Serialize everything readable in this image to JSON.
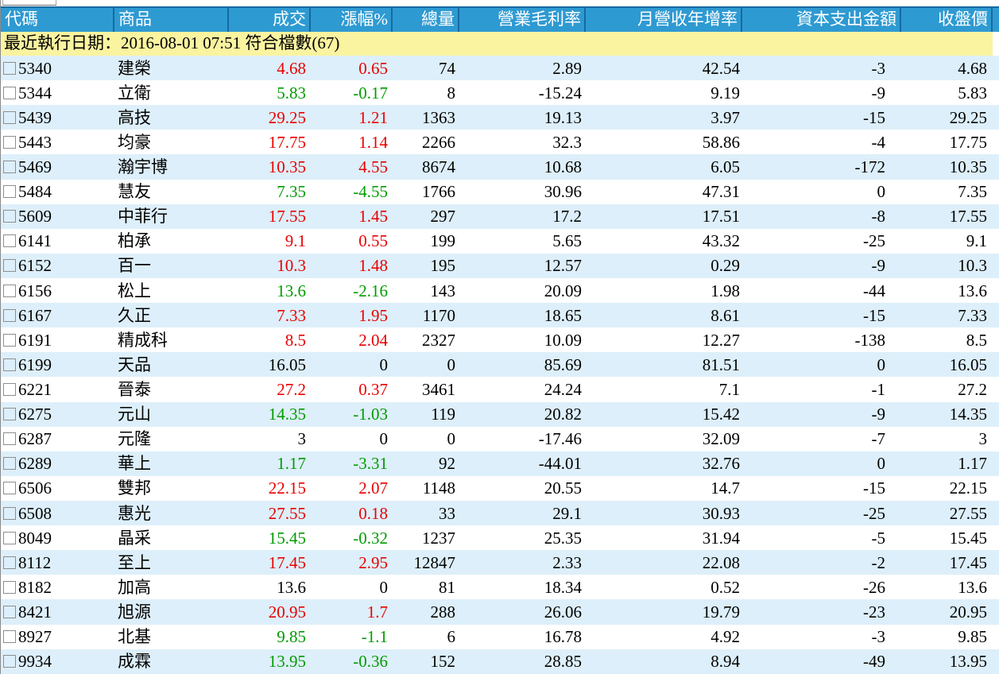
{
  "window": {
    "title": "stock-screener-results"
  },
  "colors": {
    "header_bg": "#2e9ad2",
    "header_border": "#166aa0",
    "status_bg": "#faf3a0",
    "row_alt_bg": "#ddeffa",
    "up": "#e80000",
    "down": "#009b00",
    "flat": "#000000"
  },
  "columns": [
    {
      "key": "code",
      "label": "代碼"
    },
    {
      "key": "name",
      "label": "商品"
    },
    {
      "key": "price",
      "label": "成交"
    },
    {
      "key": "change",
      "label": "漲幅%"
    },
    {
      "key": "volume",
      "label": "總量"
    },
    {
      "key": "gross_margin",
      "label": "營業毛利率"
    },
    {
      "key": "revenue_yoy",
      "label": "月營收年增率"
    },
    {
      "key": "capex",
      "label": "資本支出金額"
    },
    {
      "key": "close",
      "label": "收盤價"
    }
  ],
  "status": {
    "text": "最近執行日期：2016-08-01 07:51 符合檔數(67)",
    "last_run": "2016-08-01 07:51",
    "match_count": "67"
  },
  "rows": [
    {
      "code": "5340",
      "name": "建榮",
      "price": "4.68",
      "change": "0.65",
      "volume": "74",
      "gross_margin": "2.89",
      "revenue_yoy": "42.54",
      "capex": "-3",
      "close": "4.68",
      "trend": "up"
    },
    {
      "code": "5344",
      "name": "立衛",
      "price": "5.83",
      "change": "-0.17",
      "volume": "8",
      "gross_margin": "-15.24",
      "revenue_yoy": "9.19",
      "capex": "-9",
      "close": "5.83",
      "trend": "down"
    },
    {
      "code": "5439",
      "name": "高技",
      "price": "29.25",
      "change": "1.21",
      "volume": "1363",
      "gross_margin": "19.13",
      "revenue_yoy": "3.97",
      "capex": "-15",
      "close": "29.25",
      "trend": "up"
    },
    {
      "code": "5443",
      "name": "均豪",
      "price": "17.75",
      "change": "1.14",
      "volume": "2266",
      "gross_margin": "32.3",
      "revenue_yoy": "58.86",
      "capex": "-4",
      "close": "17.75",
      "trend": "up"
    },
    {
      "code": "5469",
      "name": "瀚宇博",
      "price": "10.35",
      "change": "4.55",
      "volume": "8674",
      "gross_margin": "10.68",
      "revenue_yoy": "6.05",
      "capex": "-172",
      "close": "10.35",
      "trend": "up"
    },
    {
      "code": "5484",
      "name": "慧友",
      "price": "7.35",
      "change": "-4.55",
      "volume": "1766",
      "gross_margin": "30.96",
      "revenue_yoy": "47.31",
      "capex": "0",
      "close": "7.35",
      "trend": "down"
    },
    {
      "code": "5609",
      "name": "中菲行",
      "price": "17.55",
      "change": "1.45",
      "volume": "297",
      "gross_margin": "17.2",
      "revenue_yoy": "17.51",
      "capex": "-8",
      "close": "17.55",
      "trend": "up"
    },
    {
      "code": "6141",
      "name": "柏承",
      "price": "9.1",
      "change": "0.55",
      "volume": "199",
      "gross_margin": "5.65",
      "revenue_yoy": "43.32",
      "capex": "-25",
      "close": "9.1",
      "trend": "up"
    },
    {
      "code": "6152",
      "name": "百一",
      "price": "10.3",
      "change": "1.48",
      "volume": "195",
      "gross_margin": "12.57",
      "revenue_yoy": "0.29",
      "capex": "-9",
      "close": "10.3",
      "trend": "up"
    },
    {
      "code": "6156",
      "name": "松上",
      "price": "13.6",
      "change": "-2.16",
      "volume": "143",
      "gross_margin": "20.09",
      "revenue_yoy": "1.98",
      "capex": "-44",
      "close": "13.6",
      "trend": "down"
    },
    {
      "code": "6167",
      "name": "久正",
      "price": "7.33",
      "change": "1.95",
      "volume": "1170",
      "gross_margin": "18.65",
      "revenue_yoy": "8.61",
      "capex": "-15",
      "close": "7.33",
      "trend": "up"
    },
    {
      "code": "6191",
      "name": "精成科",
      "price": "8.5",
      "change": "2.04",
      "volume": "2327",
      "gross_margin": "10.09",
      "revenue_yoy": "12.27",
      "capex": "-138",
      "close": "8.5",
      "trend": "up"
    },
    {
      "code": "6199",
      "name": "天品",
      "price": "16.05",
      "change": "0",
      "volume": "0",
      "gross_margin": "85.69",
      "revenue_yoy": "81.51",
      "capex": "0",
      "close": "16.05",
      "trend": "flat"
    },
    {
      "code": "6221",
      "name": "晉泰",
      "price": "27.2",
      "change": "0.37",
      "volume": "3461",
      "gross_margin": "24.24",
      "revenue_yoy": "7.1",
      "capex": "-1",
      "close": "27.2",
      "trend": "up"
    },
    {
      "code": "6275",
      "name": "元山",
      "price": "14.35",
      "change": "-1.03",
      "volume": "119",
      "gross_margin": "20.82",
      "revenue_yoy": "15.42",
      "capex": "-9",
      "close": "14.35",
      "trend": "down"
    },
    {
      "code": "6287",
      "name": "元隆",
      "price": "3",
      "change": "0",
      "volume": "0",
      "gross_margin": "-17.46",
      "revenue_yoy": "32.09",
      "capex": "-7",
      "close": "3",
      "trend": "flat"
    },
    {
      "code": "6289",
      "name": "華上",
      "price": "1.17",
      "change": "-3.31",
      "volume": "92",
      "gross_margin": "-44.01",
      "revenue_yoy": "32.76",
      "capex": "0",
      "close": "1.17",
      "trend": "down"
    },
    {
      "code": "6506",
      "name": "雙邦",
      "price": "22.15",
      "change": "2.07",
      "volume": "1148",
      "gross_margin": "20.55",
      "revenue_yoy": "14.7",
      "capex": "-15",
      "close": "22.15",
      "trend": "up"
    },
    {
      "code": "6508",
      "name": "惠光",
      "price": "27.55",
      "change": "0.18",
      "volume": "33",
      "gross_margin": "29.1",
      "revenue_yoy": "30.93",
      "capex": "-25",
      "close": "27.55",
      "trend": "up"
    },
    {
      "code": "8049",
      "name": "晶采",
      "price": "15.45",
      "change": "-0.32",
      "volume": "1237",
      "gross_margin": "25.35",
      "revenue_yoy": "31.94",
      "capex": "-5",
      "close": "15.45",
      "trend": "down"
    },
    {
      "code": "8112",
      "name": "至上",
      "price": "17.45",
      "change": "2.95",
      "volume": "12847",
      "gross_margin": "2.33",
      "revenue_yoy": "22.08",
      "capex": "-2",
      "close": "17.45",
      "trend": "up"
    },
    {
      "code": "8182",
      "name": "加高",
      "price": "13.6",
      "change": "0",
      "volume": "81",
      "gross_margin": "18.34",
      "revenue_yoy": "0.52",
      "capex": "-26",
      "close": "13.6",
      "trend": "flat"
    },
    {
      "code": "8421",
      "name": "旭源",
      "price": "20.95",
      "change": "1.7",
      "volume": "288",
      "gross_margin": "26.06",
      "revenue_yoy": "19.79",
      "capex": "-23",
      "close": "20.95",
      "trend": "up"
    },
    {
      "code": "8927",
      "name": "北基",
      "price": "9.85",
      "change": "-1.1",
      "volume": "6",
      "gross_margin": "16.78",
      "revenue_yoy": "4.92",
      "capex": "-3",
      "close": "9.85",
      "trend": "down"
    },
    {
      "code": "9934",
      "name": "成霖",
      "price": "13.95",
      "change": "-0.36",
      "volume": "152",
      "gross_margin": "28.85",
      "revenue_yoy": "8.94",
      "capex": "-49",
      "close": "13.95",
      "trend": "down"
    }
  ]
}
